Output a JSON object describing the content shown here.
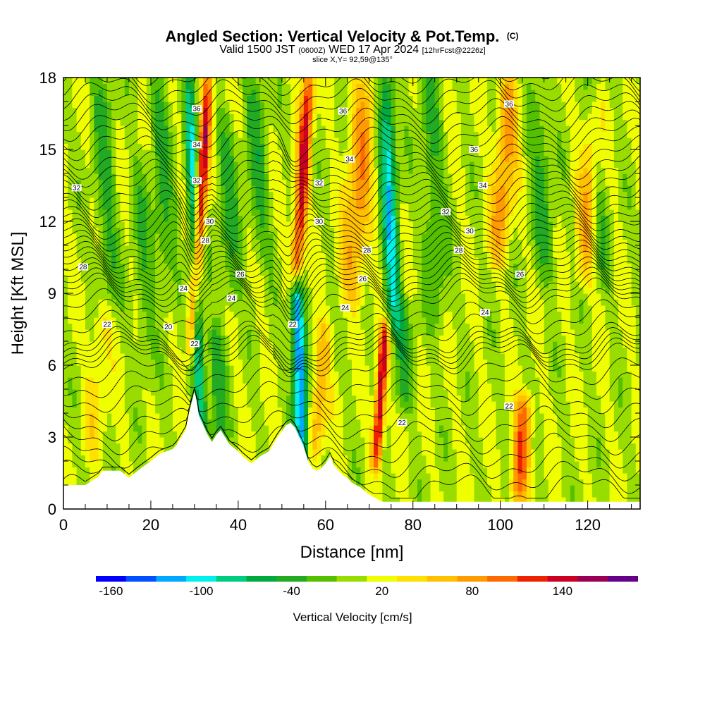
{
  "title": {
    "main": "Angled Section: Vertical Velocity & Pot.Temp.",
    "main_suffix": "(C)",
    "valid_prefix": "Valid 1500 JST",
    "valid_utc": "(0600Z)",
    "valid_date": "WED 17 Apr 2024",
    "valid_fcst": "[12hrFcst@2226z]",
    "slice": "slice X,Y= 92,59@135°"
  },
  "chart_data": {
    "type": "heatmap",
    "xlabel": "Distance [nm]",
    "ylabel": "Height [Kft MSL]",
    "xlim": [
      0,
      132
    ],
    "ylim": [
      0,
      18
    ],
    "x_ticks": [
      0,
      20,
      40,
      60,
      80,
      100,
      120
    ],
    "y_ticks": [
      0,
      3,
      6,
      9,
      12,
      15,
      18
    ],
    "x_tick_labels": [
      "0",
      "20",
      "40",
      "60",
      "80",
      "100",
      "120"
    ],
    "y_tick_labels": [
      "0",
      "3",
      "6",
      "9",
      "12",
      "15",
      "18"
    ],
    "colorbar": {
      "title": "Vertical Velocity [cm/s]",
      "min": -170,
      "max": 170,
      "step": 20,
      "labels": [
        "-160",
        "-100",
        "-40",
        "20",
        "80",
        "140"
      ],
      "label_values": [
        -160,
        -100,
        -40,
        20,
        80,
        140
      ],
      "colors": [
        "#0000ff",
        "#0050ff",
        "#00a8ff",
        "#00f0ee",
        "#00cc80",
        "#00aa40",
        "#22aa22",
        "#55c000",
        "#99dd00",
        "#f0ff00",
        "#ffe000",
        "#ffc000",
        "#ff9a00",
        "#ff6a00",
        "#ee2200",
        "#cc0022",
        "#990055",
        "#660088"
      ]
    },
    "vertical_velocity_bands": [
      {
        "x": 8,
        "halfwidth": 2.5,
        "value": 30,
        "zmin": 3,
        "zmax": 8
      },
      {
        "x": 11,
        "halfwidth": 2.5,
        "value": -40,
        "zmin": 9,
        "zmax": 18
      },
      {
        "x": 19,
        "halfwidth": 2,
        "value": -30,
        "zmin": 6,
        "zmax": 14
      },
      {
        "x": 24,
        "halfwidth": 2.5,
        "value": -40,
        "zmin": 9,
        "zmax": 18
      },
      {
        "x": 29,
        "halfwidth": 1.3,
        "value": 140,
        "zmin": 7,
        "zmax": 18
      },
      {
        "x": 31,
        "halfwidth": 1.3,
        "value": -110,
        "zmin": 2.5,
        "zmax": 18
      },
      {
        "x": 35,
        "halfwidth": 2,
        "value": -50,
        "zmin": 3,
        "zmax": 7
      },
      {
        "x": 39,
        "halfwidth": 2.5,
        "value": -40,
        "zmin": 9,
        "zmax": 16
      },
      {
        "x": 46,
        "halfwidth": 2.5,
        "value": -40,
        "zmin": 11,
        "zmax": 18
      },
      {
        "x": 52,
        "halfwidth": 1.5,
        "value": 130,
        "zmin": 10,
        "zmax": 18
      },
      {
        "x": 54,
        "halfwidth": 1.5,
        "value": -150,
        "zmin": 2.5,
        "zmax": 9
      },
      {
        "x": 59,
        "halfwidth": 2,
        "value": 60,
        "zmin": 3,
        "zmax": 7
      },
      {
        "x": 65,
        "halfwidth": 3,
        "value": 70,
        "zmin": 9,
        "zmax": 18
      },
      {
        "x": 73,
        "halfwidth": 1.2,
        "value": 150,
        "zmin": 2.5,
        "zmax": 7
      },
      {
        "x": 76,
        "halfwidth": 1.8,
        "value": -110,
        "zmin": 8,
        "zmax": 18
      },
      {
        "x": 78,
        "halfwidth": 2.5,
        "value": -40,
        "zmin": 5,
        "zmax": 8
      },
      {
        "x": 86,
        "halfwidth": 2.5,
        "value": -40,
        "zmin": 8,
        "zmax": 18
      },
      {
        "x": 98,
        "halfwidth": 2.5,
        "value": 70,
        "zmin": 11,
        "zmax": 18
      },
      {
        "x": 106,
        "halfwidth": 2,
        "value": 100,
        "zmin": 1,
        "zmax": 4
      },
      {
        "x": 111,
        "halfwidth": 2.5,
        "value": -40,
        "zmin": 10,
        "zmax": 18
      },
      {
        "x": 118,
        "halfwidth": 2.5,
        "value": 60,
        "zmin": 10,
        "zmax": 17
      },
      {
        "x": 124,
        "halfwidth": 2,
        "value": -40,
        "zmin": 10,
        "zmax": 18
      }
    ],
    "terrain_profile": {
      "x": [
        0,
        5,
        8,
        9,
        13,
        15,
        17,
        20,
        22,
        25,
        26,
        28,
        29,
        30,
        30.5,
        31,
        32,
        33,
        34,
        35,
        36,
        37,
        38,
        40,
        41,
        43,
        45,
        47,
        49,
        51,
        52,
        53,
        54,
        55,
        56,
        57,
        58,
        59,
        60,
        61,
        62,
        63,
        64,
        65,
        66,
        68,
        70,
        72,
        73,
        74,
        80,
        132
      ],
      "z": [
        1.0,
        1.0,
        1.35,
        1.6,
        1.6,
        1.3,
        1.6,
        2.0,
        2.3,
        2.5,
        2.7,
        3.3,
        4.2,
        4.9,
        4.5,
        3.9,
        3.5,
        3.1,
        2.8,
        3.1,
        3.3,
        3.0,
        2.7,
        2.4,
        2.2,
        1.9,
        2.2,
        2.4,
        3.0,
        3.5,
        3.6,
        3.4,
        3.0,
        2.6,
        2.0,
        1.7,
        1.6,
        1.7,
        1.9,
        2.2,
        1.8,
        1.6,
        1.4,
        1.3,
        1.1,
        0.9,
        0.6,
        0.4,
        0.3,
        0.3,
        0.3,
        0.3
      ]
    },
    "potential_temperature_contours": [
      {
        "label": "20",
        "interval_C": 1,
        "base_z": 6.3
      },
      {
        "label": "22",
        "interval_C": 1,
        "base_z": 7.1
      },
      {
        "label": "24",
        "interval_C": 1,
        "base_z": 8.9
      },
      {
        "label": "26",
        "interval_C": 1,
        "base_z": 9.8
      },
      {
        "label": "28",
        "interval_C": 1,
        "base_z": 10.8
      },
      {
        "label": "30",
        "interval_C": 1,
        "base_z": 11.9
      },
      {
        "label": "32",
        "interval_C": 1,
        "base_z": 13.2
      },
      {
        "label": "34",
        "interval_C": 1,
        "base_z": 14.5
      },
      {
        "label": "36",
        "interval_C": 1,
        "base_z": 16.0
      }
    ],
    "contour_labels": [
      {
        "text": "36",
        "x": 30.5,
        "z": 16.7
      },
      {
        "text": "34",
        "x": 30.5,
        "z": 15.2
      },
      {
        "text": "32",
        "x": 30.5,
        "z": 13.7
      },
      {
        "text": "30",
        "x": 33.5,
        "z": 12.0
      },
      {
        "text": "28",
        "x": 32.5,
        "z": 11.2
      },
      {
        "text": "26",
        "x": 40.5,
        "z": 9.8
      },
      {
        "text": "24",
        "x": 27.5,
        "z": 9.2
      },
      {
        "text": "24",
        "x": 38.5,
        "z": 8.8
      },
      {
        "text": "22",
        "x": 10,
        "z": 7.7
      },
      {
        "text": "20",
        "x": 24,
        "z": 7.6
      },
      {
        "text": "22",
        "x": 30,
        "z": 6.9
      },
      {
        "text": "22",
        "x": 52.5,
        "z": 7.7
      },
      {
        "text": "32",
        "x": 3,
        "z": 13.4
      },
      {
        "text": "28",
        "x": 4.5,
        "z": 10.1
      },
      {
        "text": "36",
        "x": 64,
        "z": 16.6
      },
      {
        "text": "34",
        "x": 65.5,
        "z": 14.6
      },
      {
        "text": "32",
        "x": 58.5,
        "z": 13.6
      },
      {
        "text": "30",
        "x": 58.5,
        "z": 12.0
      },
      {
        "text": "28",
        "x": 69.5,
        "z": 10.8
      },
      {
        "text": "26",
        "x": 68.5,
        "z": 9.6
      },
      {
        "text": "24",
        "x": 64.5,
        "z": 8.4
      },
      {
        "text": "36",
        "x": 102,
        "z": 16.9
      },
      {
        "text": "36",
        "x": 94,
        "z": 15.0
      },
      {
        "text": "34",
        "x": 96,
        "z": 13.5
      },
      {
        "text": "32",
        "x": 87.5,
        "z": 12.4
      },
      {
        "text": "30",
        "x": 93,
        "z": 11.6
      },
      {
        "text": "28",
        "x": 90.5,
        "z": 10.8
      },
      {
        "text": "26",
        "x": 104.5,
        "z": 9.8
      },
      {
        "text": "24",
        "x": 96.5,
        "z": 8.2
      },
      {
        "text": "22",
        "x": 102,
        "z": 4.3
      },
      {
        "text": "22",
        "x": 77.5,
        "z": 3.6
      }
    ]
  }
}
